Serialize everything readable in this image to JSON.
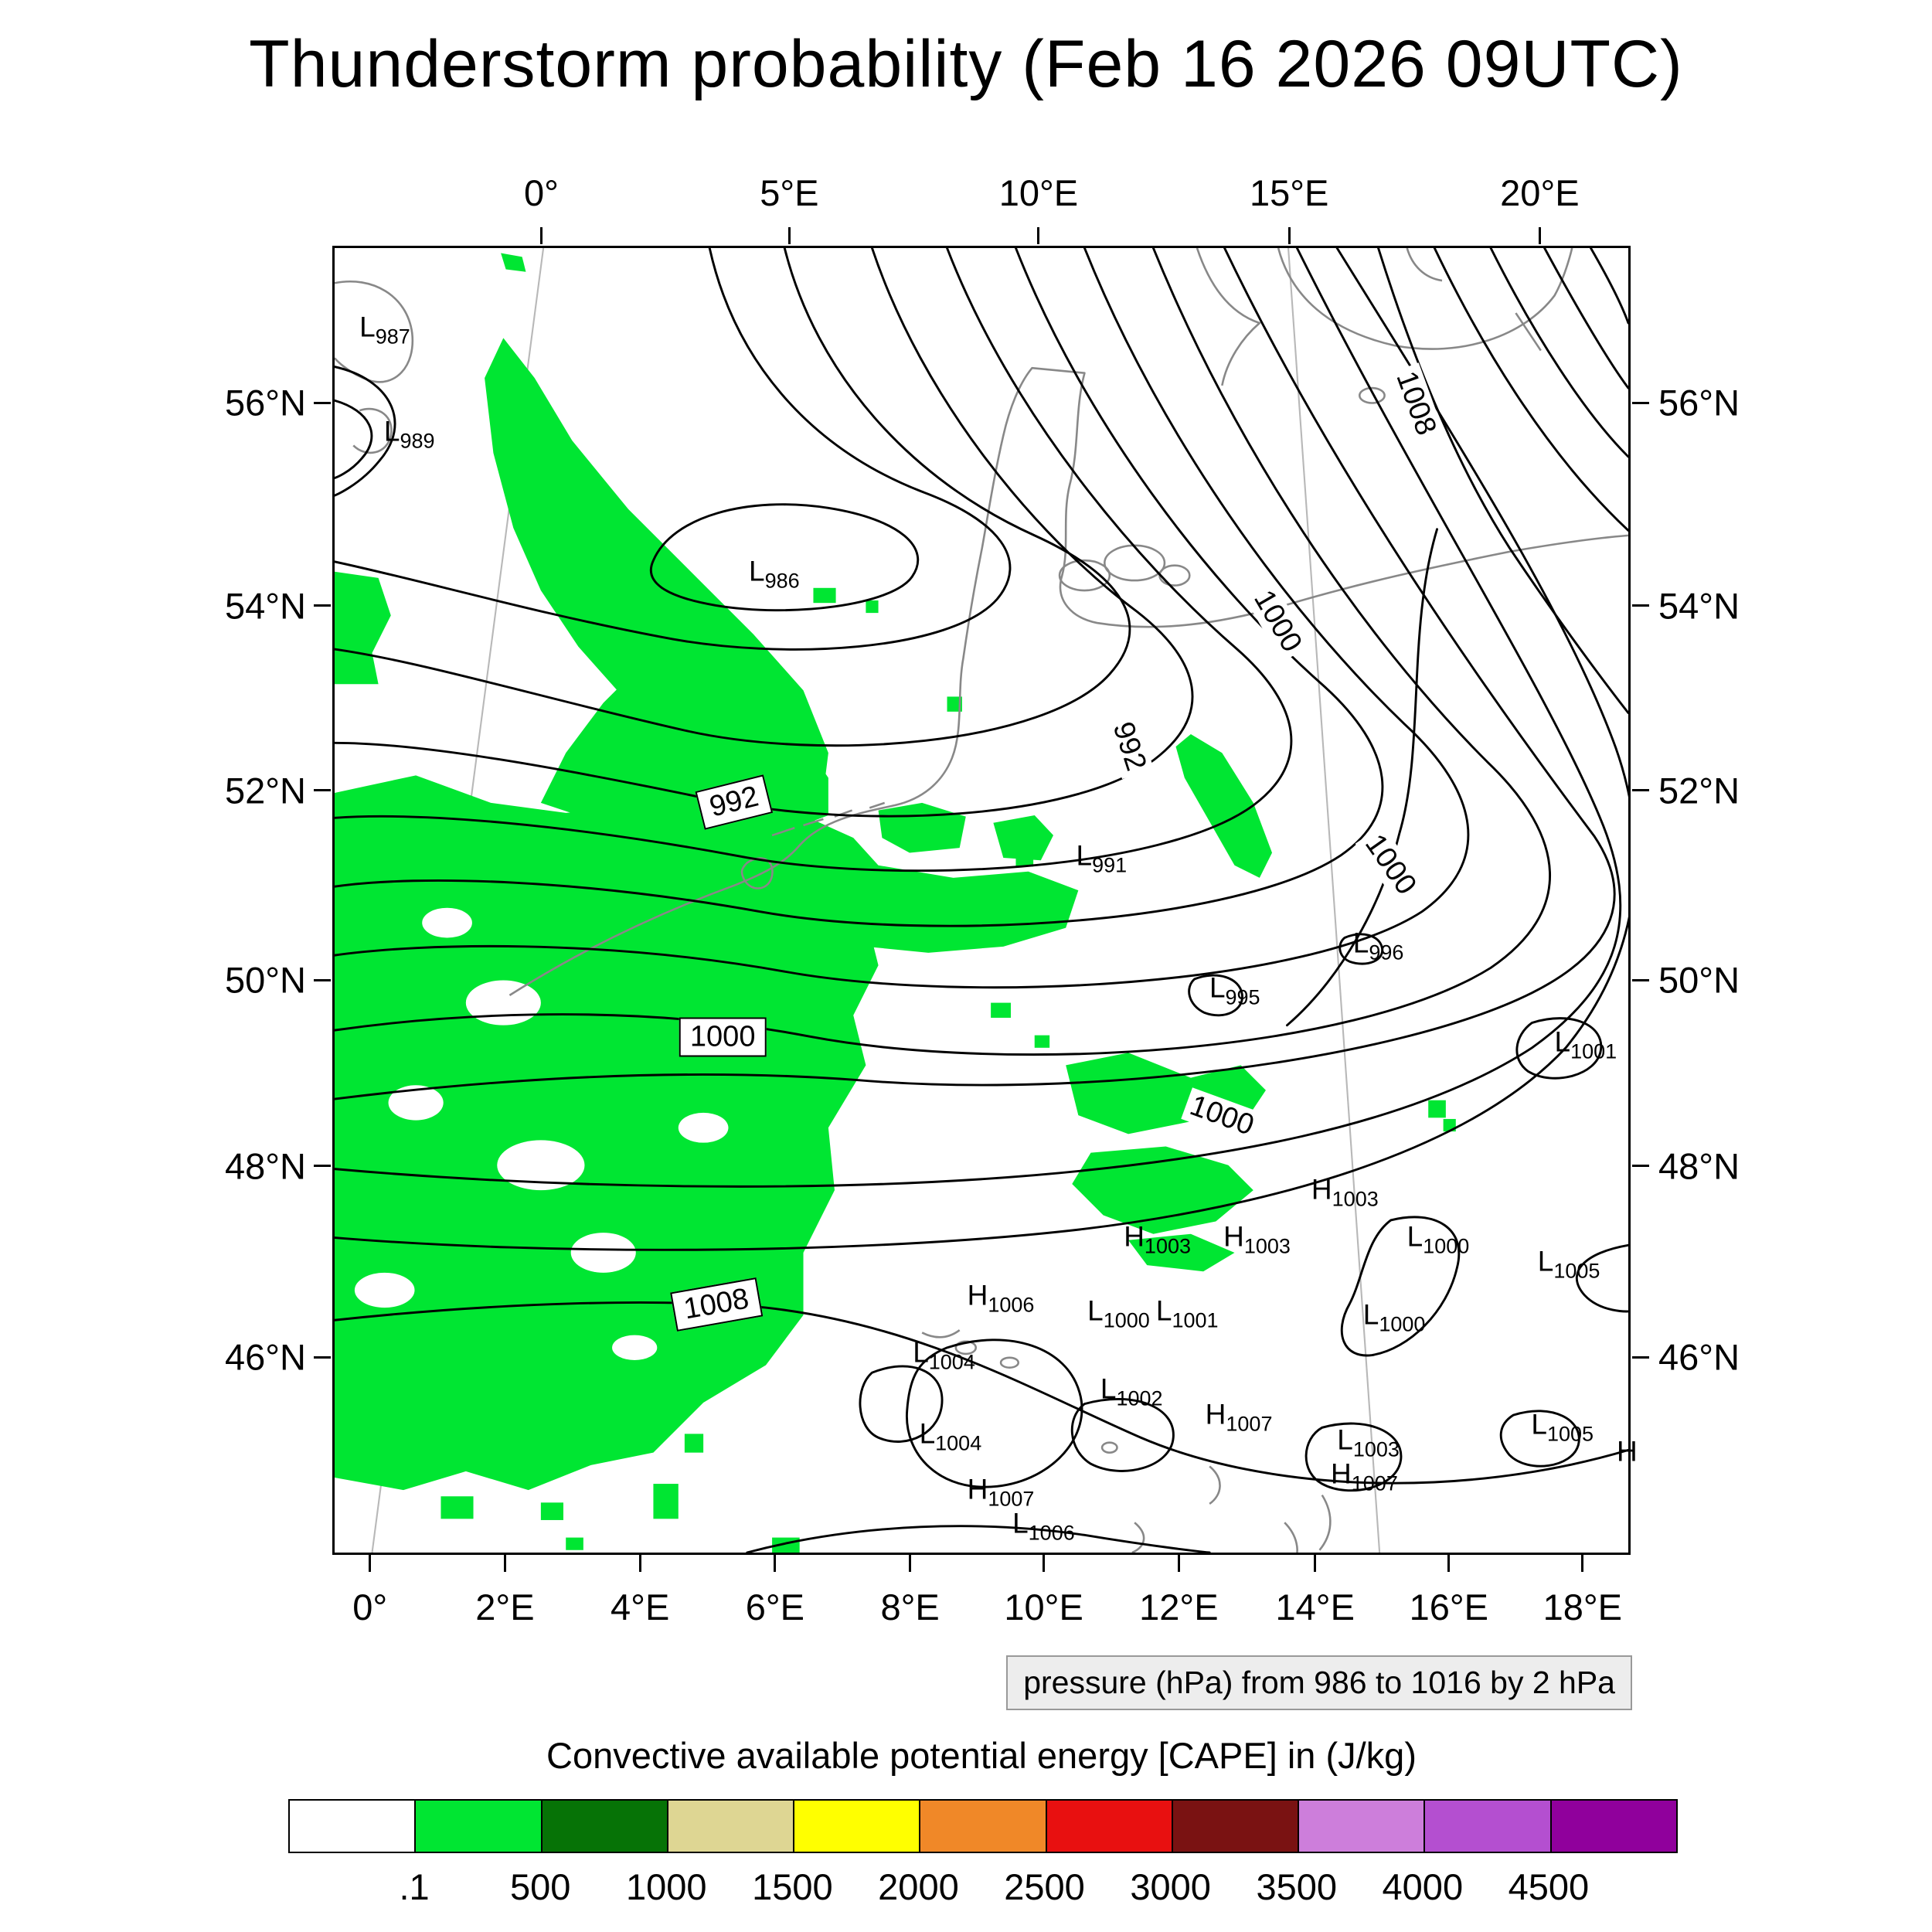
{
  "title": "Thunderstorm probability (Feb 16 2026 09UTC)",
  "pressure_note": "pressure (hPa) from 986 to 1016 by 2 hPa",
  "colorbar": {
    "title": "Convective available potential energy [CAPE] in (J/kg)",
    "colors": [
      "#FFFFFF",
      "#00E632",
      "#067306",
      "#DED693",
      "#FFFF00",
      "#F08828",
      "#E81010",
      "#7A1212",
      "#CD7EDB",
      "#B44FD0",
      "#90009C"
    ],
    "labels": [
      ".1",
      "500",
      "1000",
      "1500",
      "2000",
      "2500",
      "3000",
      "3500",
      "4000",
      "4500"
    ]
  },
  "map": {
    "axes": {
      "top": {
        "labels": [
          "0°",
          "5°E",
          "10°E",
          "15°E",
          "20°E"
        ],
        "pct": [
          16.1,
          35.2,
          54.4,
          73.7,
          93.0
        ]
      },
      "bottom": {
        "labels": [
          "0°",
          "2°E",
          "4°E",
          "6°E",
          "8°E",
          "10°E",
          "12°E",
          "14°E",
          "16°E",
          "18°E"
        ],
        "pct": [
          2.9,
          13.3,
          23.7,
          34.1,
          44.5,
          54.8,
          65.2,
          75.7,
          86.0,
          96.3
        ]
      },
      "left": {
        "labels": [
          "56°N",
          "54°N",
          "52°N",
          "50°N",
          "48°N",
          "46°N"
        ],
        "pct": [
          12.0,
          27.5,
          41.6,
          56.1,
          70.3,
          84.9
        ]
      },
      "right": {
        "labels": [
          "56°N",
          "54°N",
          "52°N",
          "50°N",
          "48°N",
          "46°N"
        ],
        "pct": [
          12.0,
          27.5,
          41.6,
          56.1,
          70.3,
          84.9
        ]
      }
    }
  },
  "chart_data": {
    "type": "contour",
    "title": "Thunderstorm probability (Feb 16 2026 09UTC)",
    "isobars_hPa": {
      "min": 986,
      "max": 1016,
      "interval": 2
    },
    "isobar_inline_labels": [
      {
        "text": "1008",
        "x": 83.6,
        "y": 11.9,
        "rot": 70,
        "boxed": false
      },
      {
        "text": "1000",
        "x": 72.9,
        "y": 28.6,
        "rot": 60,
        "boxed": false
      },
      {
        "text": "992",
        "x": 61.4,
        "y": 38.2,
        "rot": 72,
        "boxed": false
      },
      {
        "text": "992",
        "x": 30.9,
        "y": 42.5,
        "rot": -14,
        "boxed": true
      },
      {
        "text": "1000",
        "x": 81.6,
        "y": 47.3,
        "rot": 55,
        "boxed": false
      },
      {
        "text": "1000",
        "x": 30.0,
        "y": 60.5,
        "rot": 0,
        "boxed": true
      },
      {
        "text": "1000",
        "x": 68.6,
        "y": 66.5,
        "rot": 20,
        "boxed": false
      },
      {
        "text": "1008",
        "x": 29.5,
        "y": 81.0,
        "rot": -10,
        "boxed": true
      }
    ],
    "pressure_centers": [
      {
        "letter": "L",
        "value": "987",
        "x": 2.9,
        "y": 6.6
      },
      {
        "letter": "L",
        "value": "989",
        "x": 4.8,
        "y": 14.6
      },
      {
        "letter": "L",
        "value": "986",
        "x": 33.0,
        "y": 25.3
      },
      {
        "letter": "L",
        "value": "991",
        "x": 58.3,
        "y": 47.1
      },
      {
        "letter": "L",
        "value": "996",
        "x": 79.7,
        "y": 53.8
      },
      {
        "letter": "L",
        "value": "995",
        "x": 68.6,
        "y": 57.2
      },
      {
        "letter": "L",
        "value": "1001",
        "x": 95.5,
        "y": 61.4
      },
      {
        "letter": "H",
        "value": "1003",
        "x": 76.8,
        "y": 72.7
      },
      {
        "letter": "H",
        "value": "1003",
        "x": 62.3,
        "y": 76.3
      },
      {
        "letter": "H",
        "value": "1003",
        "x": 70.0,
        "y": 76.3
      },
      {
        "letter": "L",
        "value": "1000",
        "x": 84.1,
        "y": 76.3
      },
      {
        "letter": "L",
        "value": "1005",
        "x": 94.2,
        "y": 78.2
      },
      {
        "letter": "H",
        "value": "1006",
        "x": 50.2,
        "y": 80.8
      },
      {
        "letter": "L",
        "value": "1000",
        "x": 59.4,
        "y": 82.0
      },
      {
        "letter": "L",
        "value": "1001",
        "x": 64.7,
        "y": 82.0
      },
      {
        "letter": "L",
        "value": "1000",
        "x": 80.7,
        "y": 82.3
      },
      {
        "letter": "L",
        "value": "1004",
        "x": 45.9,
        "y": 85.2
      },
      {
        "letter": "L",
        "value": "1002",
        "x": 60.4,
        "y": 88.0
      },
      {
        "letter": "H",
        "value": "1007",
        "x": 68.6,
        "y": 89.9
      },
      {
        "letter": "L",
        "value": "1004",
        "x": 46.4,
        "y": 91.4
      },
      {
        "letter": "L",
        "value": "1003",
        "x": 78.7,
        "y": 91.9
      },
      {
        "letter": "L",
        "value": "1005",
        "x": 93.7,
        "y": 90.7
      },
      {
        "letter": "H",
        "value": "1007",
        "x": 78.3,
        "y": 94.5
      },
      {
        "letter": "H",
        "value": "1007",
        "x": 50.2,
        "y": 95.7
      },
      {
        "letter": "L",
        "value": "1006",
        "x": 53.6,
        "y": 98.3
      },
      {
        "letter": "H",
        "value": "",
        "x": 99.5,
        "y": 92.8
      }
    ],
    "cape_shading": {
      "variable": "Convective available potential energy [CAPE]",
      "unit": "J/kg",
      "levels": [
        0.1,
        500,
        1000,
        1500,
        2000,
        2500,
        3000,
        3500,
        4000,
        4500
      ],
      "shading_color_hex": "#00E632",
      "visible_shading": "green band (0.1-500 J/kg) over western and central Europe"
    },
    "lat_ticks": [
      "56°N",
      "54°N",
      "52°N",
      "50°N",
      "48°N",
      "46°N"
    ],
    "lon_ticks_top": [
      "0°",
      "5°E",
      "10°E",
      "15°E",
      "20°E"
    ],
    "lon_ticks_bottom": [
      "0°",
      "2°E",
      "4°E",
      "6°E",
      "8°E",
      "10°E",
      "12°E",
      "14°E",
      "16°E",
      "18°E"
    ]
  }
}
